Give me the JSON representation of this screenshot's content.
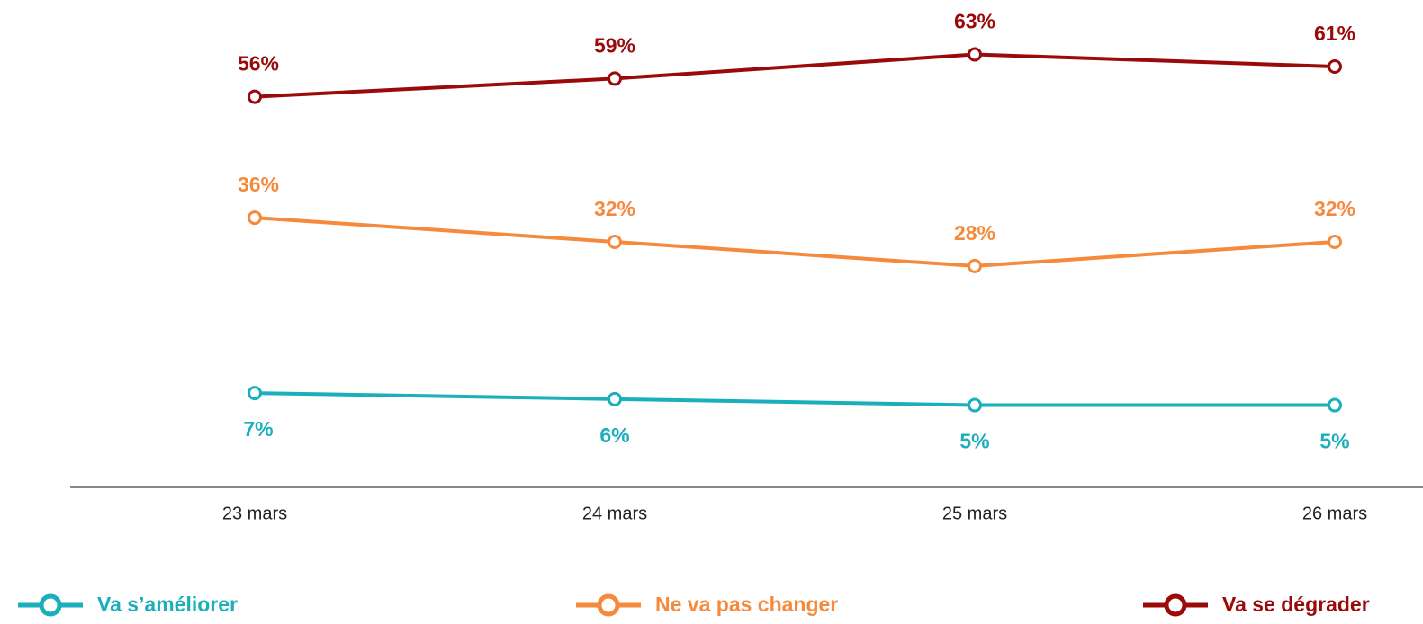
{
  "chart_data": {
    "type": "line",
    "categories": [
      "23 mars",
      "24 mars",
      "25 mars",
      "26 mars"
    ],
    "ylim": [
      -8.6,
      72
    ],
    "series": [
      {
        "name": "Va s’améliorer",
        "color": "#1aafbb",
        "values": [
          7,
          6,
          5,
          5
        ],
        "value_labels": [
          "7%",
          "6%",
          "5%",
          "5%"
        ]
      },
      {
        "name": "Ne va pas changer",
        "color": "#f58a3c",
        "values": [
          36,
          32,
          28,
          32
        ],
        "value_labels": [
          "36%",
          "32%",
          "28%",
          "32%"
        ]
      },
      {
        "name": "Va se dégrader",
        "color": "#9b0a0a",
        "values": [
          56,
          59,
          63,
          61
        ],
        "value_labels": [
          "56%",
          "59%",
          "63%",
          "61%"
        ]
      }
    ],
    "legend": "bottom"
  }
}
